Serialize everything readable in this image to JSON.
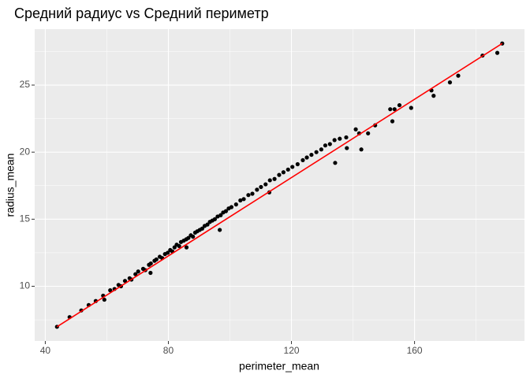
{
  "chart_data": {
    "type": "scatter",
    "title": "Средний радиус vs Средний периметр",
    "x_label": "perimeter_mean",
    "y_label": "radius_mean",
    "xlim": [
      36.56,
      195.73
    ],
    "ylim": [
      5.92,
      29.17
    ],
    "xticks": [
      40,
      80,
      120,
      160
    ],
    "yticks": [
      10,
      15,
      20,
      25
    ],
    "grid": true,
    "points": {
      "color": "#000000",
      "x": [
        43.8,
        47.9,
        51.7,
        54.1,
        56.4,
        58.8,
        59.2,
        61.1,
        62.5,
        63.8,
        64.6,
        65.9,
        67.4,
        68.0,
        69.3,
        70.2,
        71.8,
        72.5,
        73.7,
        74.3,
        75.5,
        76.1,
        77.2,
        78.0,
        78.9,
        79.8,
        80.6,
        81.3,
        82.0,
        82.7,
        83.5,
        84.1,
        85.0,
        85.8,
        86.5,
        87.3,
        88.0,
        88.7,
        89.4,
        90.2,
        91.0,
        91.8,
        92.7,
        93.5,
        94.3,
        95.1,
        96.0,
        97.0,
        97.8,
        98.7,
        99.6,
        100.5,
        102.0,
        103.4,
        104.5,
        106.0,
        107.3,
        108.8,
        110.1,
        111.6,
        113.0,
        114.5,
        116.0,
        117.4,
        118.9,
        120.3,
        122.0,
        123.7,
        125.0,
        126.5,
        128.1,
        129.7,
        131.0,
        132.5,
        134.0,
        135.7,
        137.8,
        140.9,
        142.0,
        142.7,
        144.9,
        147.2,
        152.1,
        152.8,
        153.5,
        155.1,
        158.9,
        165.5,
        166.2,
        171.5,
        174.2,
        182.1,
        186.9,
        188.5,
        112.8,
        134.2,
        138.0,
        74.2,
        85.9,
        96.7
      ],
      "y": [
        6.98,
        7.7,
        8.2,
        8.6,
        8.9,
        9.3,
        9.0,
        9.7,
        9.8,
        10.1,
        10.0,
        10.4,
        10.6,
        10.5,
        10.9,
        11.1,
        11.3,
        11.2,
        11.6,
        11.7,
        11.9,
        12.0,
        12.2,
        12.1,
        12.4,
        12.5,
        12.7,
        12.6,
        12.9,
        13.1,
        13.0,
        13.3,
        13.4,
        13.5,
        13.6,
        13.8,
        13.7,
        14.0,
        14.1,
        14.2,
        14.3,
        14.5,
        14.6,
        14.8,
        14.9,
        15.0,
        15.2,
        15.3,
        15.5,
        15.6,
        15.8,
        15.9,
        16.1,
        16.4,
        16.5,
        16.8,
        16.9,
        17.2,
        17.4,
        17.6,
        17.9,
        18.0,
        18.3,
        18.5,
        18.7,
        18.9,
        19.1,
        19.4,
        19.6,
        19.8,
        20.0,
        20.2,
        20.5,
        20.6,
        20.9,
        21.0,
        21.1,
        21.7,
        21.4,
        20.2,
        21.4,
        22.0,
        23.2,
        22.3,
        23.2,
        23.5,
        23.3,
        24.6,
        24.2,
        25.2,
        25.7,
        27.2,
        27.4,
        28.1,
        17.0,
        19.2,
        20.3,
        11.0,
        12.9,
        14.2
      ]
    },
    "fit_line": {
      "color": "#ff0000",
      "x": [
        43.8,
        188.5
      ],
      "y": [
        6.98,
        28.1
      ]
    }
  }
}
